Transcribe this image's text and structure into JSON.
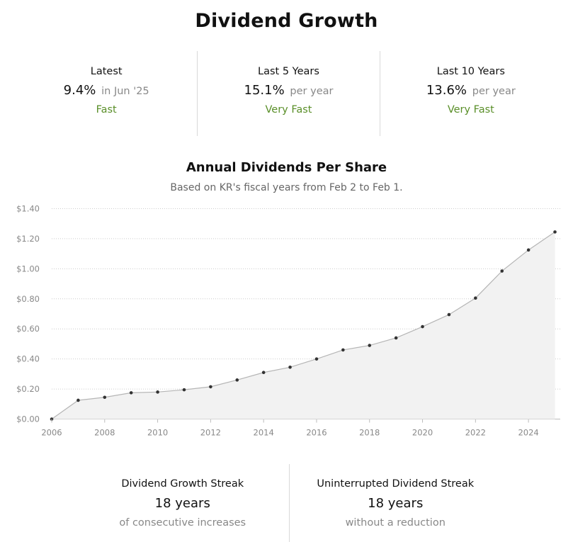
{
  "title": "Dividend Growth",
  "stats": [
    {
      "label": "Latest",
      "value": "9.4%",
      "unit": "in Jun '25",
      "rating": "Fast"
    },
    {
      "label": "Last 5 Years",
      "value": "15.1%",
      "unit": "per year",
      "rating": "Very Fast"
    },
    {
      "label": "Last 10 Years",
      "value": "13.6%",
      "unit": "per year",
      "rating": "Very Fast"
    }
  ],
  "colors": {
    "rating": "#5a8f29",
    "line": "#b5b5b5",
    "area": "#f2f2f2",
    "point": "#333333",
    "grid": "#cccccc"
  },
  "chart_data": {
    "type": "area",
    "title": "Annual Dividends Per Share",
    "subtitle": "Based on KR's fiscal years from Feb 2 to Feb 1.",
    "x": [
      2006,
      2007,
      2008,
      2009,
      2010,
      2011,
      2012,
      2013,
      2014,
      2015,
      2016,
      2017,
      2018,
      2019,
      2020,
      2021,
      2022,
      2023,
      2024,
      2025
    ],
    "values": [
      0.0,
      0.125,
      0.145,
      0.175,
      0.18,
      0.195,
      0.215,
      0.26,
      0.31,
      0.345,
      0.4,
      0.46,
      0.49,
      0.54,
      0.615,
      0.695,
      0.805,
      0.985,
      1.125,
      1.245
    ],
    "xlim": [
      2006,
      2025.2
    ],
    "ylim": [
      0,
      1.4
    ],
    "yticks": [
      0,
      0.2,
      0.4,
      0.6,
      0.8,
      1.0,
      1.2,
      1.4
    ],
    "ytick_labels": [
      "$0.00",
      "$0.20",
      "$0.40",
      "$0.60",
      "$0.80",
      "$1.00",
      "$1.20",
      "$1.40"
    ],
    "xticks": [
      2006,
      2008,
      2010,
      2012,
      2014,
      2016,
      2018,
      2020,
      2022,
      2024
    ],
    "xtick_labels": [
      "2006",
      "2008",
      "2010",
      "2012",
      "2014",
      "2016",
      "2018",
      "2020",
      "2022",
      "2024"
    ],
    "grid": true,
    "legend": "none"
  },
  "streaks": [
    {
      "label": "Dividend Growth Streak",
      "value": "18 years",
      "note": "of consecutive increases"
    },
    {
      "label": "Uninterrupted Dividend Streak",
      "value": "18 years",
      "note": "without a reduction"
    }
  ]
}
